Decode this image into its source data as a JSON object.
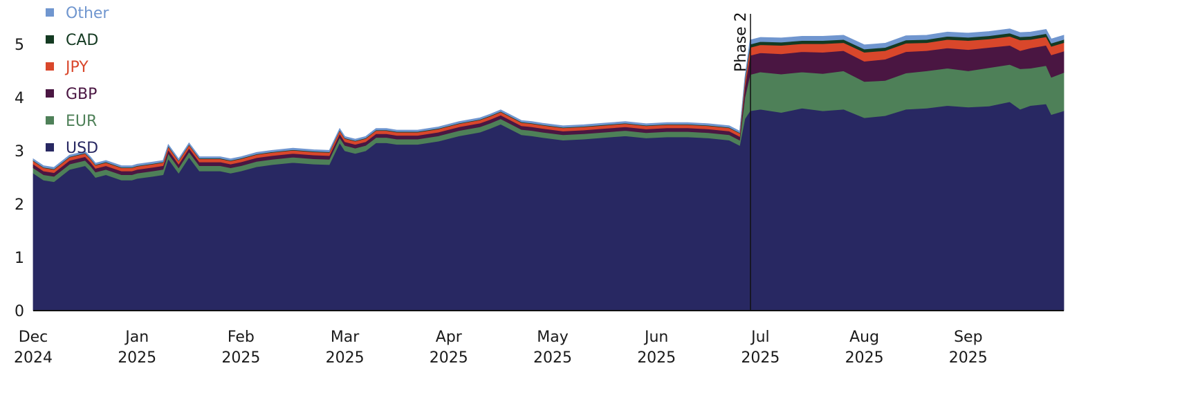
{
  "chart_data": {
    "type": "area",
    "stacked": true,
    "title": "",
    "xlabel": "",
    "ylabel": "",
    "ylim": [
      0,
      5.6
    ],
    "yticks": [
      0,
      1,
      2,
      3,
      4,
      5
    ],
    "grid": false,
    "legend_position": "top-left",
    "x_ticks": [
      {
        "month": "Dec",
        "year": "2024"
      },
      {
        "month": "Jan",
        "year": "2025"
      },
      {
        "month": "Feb",
        "year": "2025"
      },
      {
        "month": "Mar",
        "year": "2025"
      },
      {
        "month": "Apr",
        "year": "2025"
      },
      {
        "month": "May",
        "year": "2025"
      },
      {
        "month": "Jun",
        "year": "2025"
      },
      {
        "month": "Jul",
        "year": "2025"
      },
      {
        "month": "Aug",
        "year": "2025"
      },
      {
        "month": "Sep",
        "year": "2025"
      }
    ],
    "annotation": {
      "label": "Phase 2",
      "x": 6.9
    },
    "x": [
      0.0,
      0.1,
      0.2,
      0.35,
      0.5,
      0.55,
      0.6,
      0.7,
      0.85,
      0.95,
      1.0,
      1.15,
      1.25,
      1.3,
      1.4,
      1.5,
      1.6,
      1.7,
      1.8,
      1.9,
      2.0,
      2.15,
      2.3,
      2.5,
      2.7,
      2.85,
      2.95,
      3.0,
      3.1,
      3.2,
      3.3,
      3.4,
      3.5,
      3.7,
      3.9,
      4.1,
      4.3,
      4.4,
      4.5,
      4.7,
      4.8,
      4.9,
      5.1,
      5.3,
      5.5,
      5.7,
      5.9,
      6.1,
      6.3,
      6.5,
      6.7,
      6.8,
      6.85,
      6.9,
      7.0,
      7.2,
      7.4,
      7.6,
      7.8,
      8.0,
      8.2,
      8.4,
      8.6,
      8.8,
      9.0,
      9.2,
      9.4,
      9.5,
      9.6,
      9.75,
      9.8,
      9.93
    ],
    "series": [
      {
        "name": "USD",
        "color": "#282862",
        "values": [
          2.58,
          2.45,
          2.42,
          2.65,
          2.72,
          2.62,
          2.5,
          2.55,
          2.45,
          2.45,
          2.48,
          2.52,
          2.55,
          2.85,
          2.58,
          2.88,
          2.62,
          2.62,
          2.62,
          2.58,
          2.62,
          2.7,
          2.74,
          2.78,
          2.75,
          2.74,
          3.15,
          3.0,
          2.95,
          3.0,
          3.15,
          3.15,
          3.12,
          3.12,
          3.18,
          3.28,
          3.35,
          3.42,
          3.5,
          3.3,
          3.28,
          3.25,
          3.2,
          3.22,
          3.25,
          3.28,
          3.24,
          3.26,
          3.26,
          3.24,
          3.2,
          3.1,
          3.6,
          3.75,
          3.78,
          3.72,
          3.8,
          3.75,
          3.78,
          3.62,
          3.66,
          3.78,
          3.8,
          3.85,
          3.82,
          3.84,
          3.92,
          3.78,
          3.85,
          3.88,
          3.68,
          3.75
        ]
      },
      {
        "name": "EUR",
        "color": "#4e8058",
        "values": [
          0.1,
          0.1,
          0.1,
          0.1,
          0.1,
          0.1,
          0.1,
          0.1,
          0.1,
          0.1,
          0.1,
          0.1,
          0.1,
          0.1,
          0.1,
          0.1,
          0.1,
          0.1,
          0.1,
          0.1,
          0.1,
          0.1,
          0.1,
          0.1,
          0.1,
          0.1,
          0.1,
          0.1,
          0.1,
          0.1,
          0.1,
          0.1,
          0.1,
          0.1,
          0.1,
          0.1,
          0.1,
          0.1,
          0.1,
          0.1,
          0.1,
          0.1,
          0.1,
          0.1,
          0.1,
          0.1,
          0.1,
          0.1,
          0.1,
          0.1,
          0.1,
          0.1,
          0.4,
          0.68,
          0.7,
          0.72,
          0.68,
          0.7,
          0.72,
          0.68,
          0.66,
          0.68,
          0.7,
          0.7,
          0.68,
          0.72,
          0.7,
          0.76,
          0.7,
          0.72,
          0.7,
          0.72
        ]
      },
      {
        "name": "GBP",
        "color": "#4a1642",
        "values": [
          0.07,
          0.07,
          0.07,
          0.07,
          0.07,
          0.07,
          0.07,
          0.07,
          0.07,
          0.07,
          0.07,
          0.07,
          0.07,
          0.07,
          0.07,
          0.07,
          0.07,
          0.07,
          0.07,
          0.07,
          0.07,
          0.07,
          0.07,
          0.07,
          0.07,
          0.07,
          0.07,
          0.07,
          0.07,
          0.07,
          0.07,
          0.07,
          0.07,
          0.07,
          0.07,
          0.07,
          0.07,
          0.07,
          0.07,
          0.07,
          0.07,
          0.07,
          0.07,
          0.07,
          0.07,
          0.07,
          0.07,
          0.07,
          0.07,
          0.07,
          0.07,
          0.07,
          0.2,
          0.36,
          0.36,
          0.38,
          0.38,
          0.4,
          0.38,
          0.38,
          0.4,
          0.4,
          0.38,
          0.38,
          0.4,
          0.38,
          0.36,
          0.34,
          0.38,
          0.38,
          0.42,
          0.4
        ]
      },
      {
        "name": "JPY",
        "color": "#d9472b",
        "values": [
          0.06,
          0.06,
          0.06,
          0.06,
          0.06,
          0.06,
          0.06,
          0.06,
          0.06,
          0.06,
          0.06,
          0.06,
          0.06,
          0.06,
          0.06,
          0.06,
          0.06,
          0.06,
          0.06,
          0.06,
          0.06,
          0.06,
          0.06,
          0.06,
          0.06,
          0.06,
          0.06,
          0.06,
          0.06,
          0.06,
          0.06,
          0.06,
          0.06,
          0.06,
          0.06,
          0.06,
          0.06,
          0.06,
          0.06,
          0.06,
          0.06,
          0.06,
          0.06,
          0.06,
          0.06,
          0.06,
          0.06,
          0.06,
          0.06,
          0.06,
          0.06,
          0.06,
          0.1,
          0.15,
          0.15,
          0.16,
          0.15,
          0.16,
          0.15,
          0.17,
          0.16,
          0.16,
          0.15,
          0.16,
          0.17,
          0.16,
          0.17,
          0.2,
          0.16,
          0.16,
          0.16,
          0.16
        ]
      },
      {
        "name": "CAD",
        "color": "#143a22",
        "values": [
          0.01,
          0.01,
          0.01,
          0.01,
          0.01,
          0.01,
          0.01,
          0.01,
          0.01,
          0.01,
          0.01,
          0.01,
          0.01,
          0.01,
          0.01,
          0.01,
          0.01,
          0.01,
          0.01,
          0.01,
          0.01,
          0.01,
          0.01,
          0.01,
          0.01,
          0.01,
          0.01,
          0.01,
          0.01,
          0.01,
          0.01,
          0.01,
          0.01,
          0.01,
          0.01,
          0.01,
          0.01,
          0.01,
          0.01,
          0.01,
          0.01,
          0.01,
          0.01,
          0.01,
          0.01,
          0.01,
          0.01,
          0.01,
          0.01,
          0.01,
          0.01,
          0.01,
          0.03,
          0.06,
          0.06,
          0.06,
          0.06,
          0.06,
          0.06,
          0.06,
          0.06,
          0.06,
          0.06,
          0.06,
          0.06,
          0.06,
          0.06,
          0.06,
          0.06,
          0.06,
          0.06,
          0.06
        ]
      },
      {
        "name": "Other",
        "color": "#7096cf",
        "values": [
          0.03,
          0.03,
          0.03,
          0.03,
          0.03,
          0.03,
          0.03,
          0.03,
          0.03,
          0.03,
          0.03,
          0.03,
          0.03,
          0.03,
          0.03,
          0.03,
          0.03,
          0.03,
          0.03,
          0.03,
          0.03,
          0.03,
          0.03,
          0.03,
          0.03,
          0.03,
          0.03,
          0.03,
          0.03,
          0.03,
          0.03,
          0.03,
          0.03,
          0.03,
          0.03,
          0.03,
          0.03,
          0.03,
          0.03,
          0.03,
          0.03,
          0.03,
          0.03,
          0.03,
          0.03,
          0.03,
          0.03,
          0.03,
          0.03,
          0.03,
          0.03,
          0.03,
          0.05,
          0.08,
          0.08,
          0.08,
          0.08,
          0.08,
          0.08,
          0.08,
          0.08,
          0.08,
          0.08,
          0.08,
          0.08,
          0.08,
          0.08,
          0.08,
          0.08,
          0.08,
          0.08,
          0.08
        ]
      }
    ]
  },
  "legend": {
    "items": [
      {
        "label": "Other",
        "color": "#7096cf"
      },
      {
        "label": "CAD",
        "color": "#143a22"
      },
      {
        "label": "JPY",
        "color": "#d9472b"
      },
      {
        "label": "GBP",
        "color": "#4a1642"
      },
      {
        "label": "EUR",
        "color": "#4e8058"
      },
      {
        "label": "USD",
        "color": "#282862"
      }
    ]
  },
  "y_axis": {
    "ticks": [
      "0",
      "1",
      "2",
      "3",
      "4",
      "5"
    ]
  },
  "x_axis": {
    "ticks": [
      {
        "month": "Dec",
        "year": "2024"
      },
      {
        "month": "Jan",
        "year": "2025"
      },
      {
        "month": "Feb",
        "year": "2025"
      },
      {
        "month": "Mar",
        "year": "2025"
      },
      {
        "month": "Apr",
        "year": "2025"
      },
      {
        "month": "May",
        "year": "2025"
      },
      {
        "month": "Jun",
        "year": "2025"
      },
      {
        "month": "Jul",
        "year": "2025"
      },
      {
        "month": "Aug",
        "year": "2025"
      },
      {
        "month": "Sep",
        "year": "2025"
      }
    ]
  },
  "annotation": {
    "label": "Phase 2"
  }
}
